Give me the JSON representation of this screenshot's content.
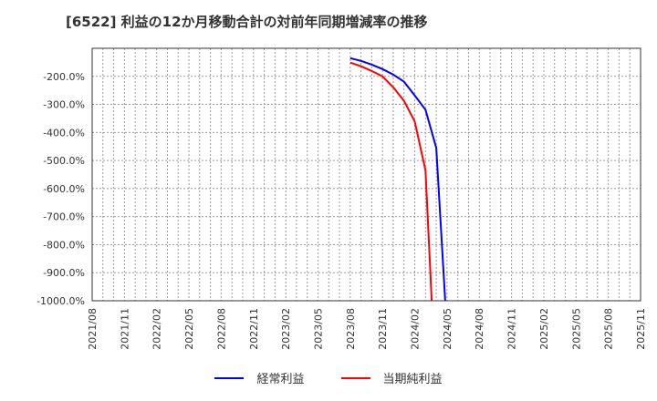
{
  "title": "[6522]  利益の12か月移動合計の対前年同期増減率の推移",
  "legend": [
    {
      "label": "経常利益",
      "color": "#0000ff"
    },
    {
      "label": "当期純利益",
      "color": "#ff0000"
    }
  ],
  "chart_data": {
    "type": "line",
    "title": "[6522]  利益の12か月移動合計の対前年同期増減率の推移",
    "xlabel": "",
    "ylabel": "",
    "ylim": [
      -1000,
      -100
    ],
    "yticks": [
      "-200.0%",
      "-300.0%",
      "-400.0%",
      "-500.0%",
      "-600.0%",
      "-700.0%",
      "-800.0%",
      "-900.0%",
      "-1000.0%"
    ],
    "xticks": [
      "2021/08",
      "2021/11",
      "2022/02",
      "2022/05",
      "2022/08",
      "2022/11",
      "2023/02",
      "2023/05",
      "2023/08",
      "2023/11",
      "2024/02",
      "2024/05",
      "2024/08",
      "2024/11",
      "2025/02",
      "2025/05",
      "2025/08",
      "2025/11"
    ],
    "grid": true,
    "legend_position": "bottom",
    "x": [
      "2023/08",
      "2023/09",
      "2023/10",
      "2023/11",
      "2023/12",
      "2024/01",
      "2024/02",
      "2024/03",
      "2024/04",
      "2024/05"
    ],
    "series": [
      {
        "name": "経常利益",
        "color": "#0000ff",
        "values": [
          -135,
          -145,
          -158,
          -174,
          -194,
          -219,
          -268,
          -319,
          -455,
          -1000
        ]
      },
      {
        "name": "当期純利益",
        "color": "#ff0000",
        "values": [
          -151,
          -164,
          -181,
          -200,
          -239,
          -287,
          -361,
          -535,
          -1000,
          null
        ]
      }
    ]
  }
}
